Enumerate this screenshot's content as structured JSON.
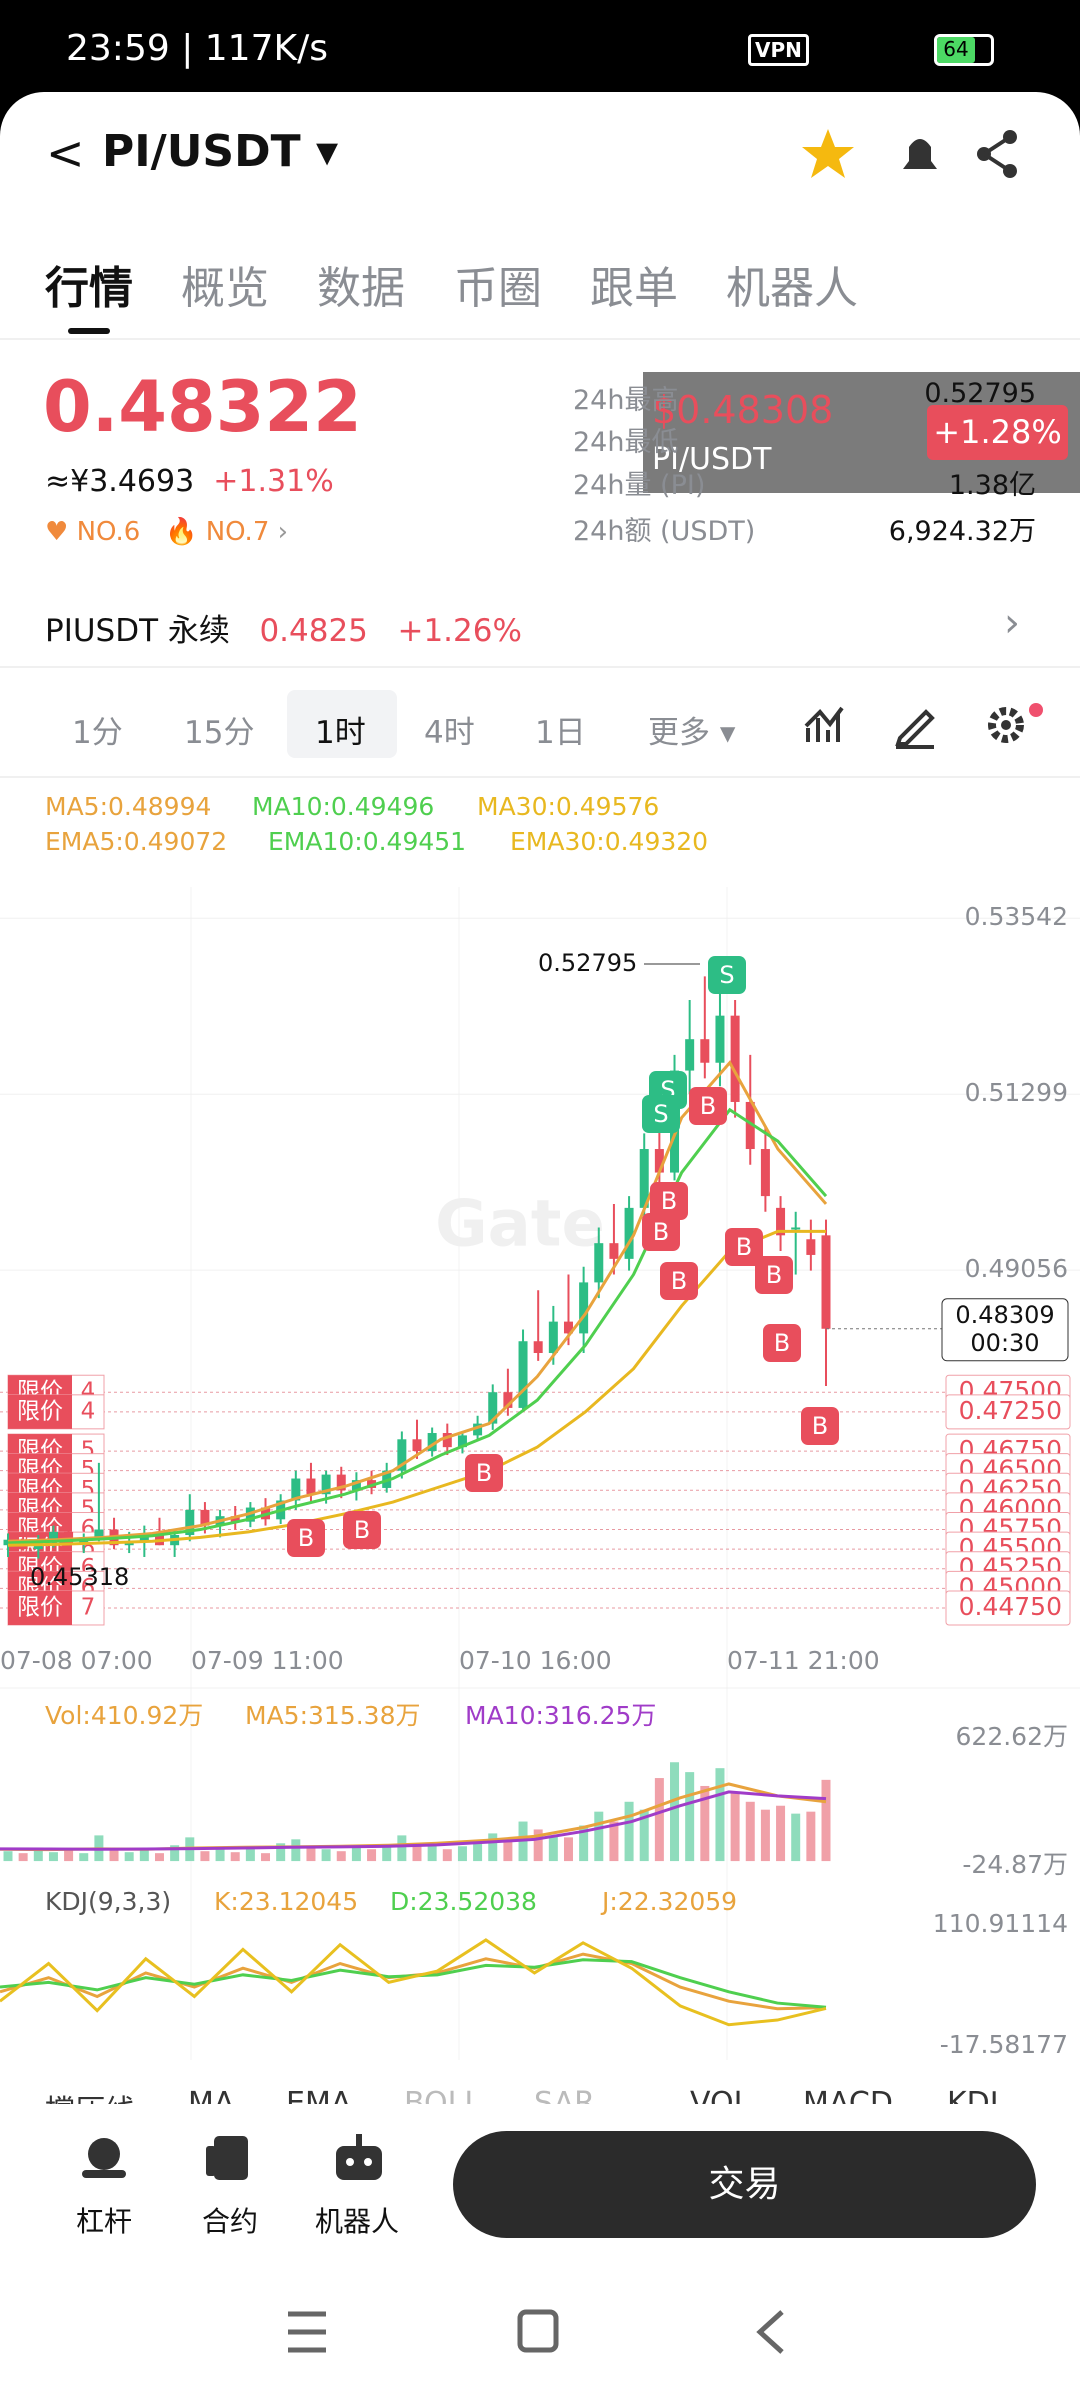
{
  "status_bar": {
    "time": "23:59",
    "speed": "117K/s",
    "vpn": "VPN",
    "battery": "64"
  },
  "header": {
    "pair": "PI/USDT"
  },
  "tabs": [
    "行情",
    "概览",
    "数据",
    "币圈",
    "跟单",
    "机器人"
  ],
  "price": {
    "last": "0.48322",
    "cny": "≈¥3.4693",
    "change": "+1.31%",
    "ranks": [
      "NO.6",
      "NO.7"
    ]
  },
  "stats": [
    {
      "label": "24h最高",
      "value": "0.52795"
    },
    {
      "label": "24h最低"
    },
    {
      "label": "24h量 (PI)",
      "value": "1.38亿"
    },
    {
      "label": "24h额 (USDT)",
      "value": "6,924.32万"
    }
  ],
  "popup": {
    "price": "$0.48308",
    "change": "+1.28%",
    "pair": "PI/USDT"
  },
  "perpetual": {
    "name": "PIUSDT 永续",
    "price": "0.4825",
    "change": "+1.26%"
  },
  "intervals": [
    "1分",
    "15分",
    "1时",
    "4时",
    "1日",
    "更多"
  ],
  "selected_interval": 2,
  "indicators": {
    "ma": [
      "MA5:0.48994",
      "MA10:0.49496",
      "MA30:0.49576"
    ],
    "ema": [
      "EMA5:0.49072",
      "EMA10:0.49451",
      "EMA30:0.49320"
    ]
  },
  "chart": {
    "watermark": "Gate",
    "ylim": [
      0.4438,
      0.5394
    ],
    "yticks": [
      0.53542,
      0.51299,
      0.49056
    ],
    "xlabels": [
      "07-08 07:00",
      "07-09 11:00",
      "07-10 16:00",
      "07-11 21:00"
    ],
    "high_label": "0.52795",
    "low_label": "0.45318",
    "limit_tag": "限价",
    "current": {
      "price": "0.48309",
      "countdown": "00:30"
    },
    "limit_orders": [
      {
        "price": {
          "value": 0.475,
          "label": "0.47500"
        },
        "count": 4
      },
      {
        "price": {
          "value": 0.4725,
          "label": "0.47250"
        },
        "count": 4
      },
      {
        "price": {
          "value": 0.4675,
          "label": "0.46750"
        },
        "count": 5
      },
      {
        "price": {
          "value": 0.465,
          "label": "0.46500"
        },
        "count": 5
      },
      {
        "price": {
          "value": 0.4625,
          "label": "0.46250"
        },
        "count": 5
      },
      {
        "price": {
          "value": 0.46,
          "label": "0.46000"
        },
        "count": 5
      },
      {
        "price": {
          "value": 0.4575,
          "label": "0.45750"
        },
        "count": 6
      },
      {
        "price": {
          "value": 0.455,
          "label": "0.45500"
        },
        "count": 6
      },
      {
        "price": {
          "value": 0.4525,
          "label": "0.45250"
        },
        "count": 6
      },
      {
        "price": {
          "value": 0.45,
          "label": "0.45000"
        },
        "count": 6
      },
      {
        "price": {
          "value": 0.4475,
          "label": "0.44750"
        },
        "count": 7
      }
    ],
    "candles": [
      [
        0.4555,
        0.457,
        0.454,
        0.4562
      ],
      [
        0.4562,
        0.4575,
        0.4548,
        0.455
      ],
      [
        0.455,
        0.4568,
        0.4538,
        0.456
      ],
      [
        0.456,
        0.458,
        0.4552,
        0.4572
      ],
      [
        0.4572,
        0.4585,
        0.4556,
        0.4558
      ],
      [
        0.4558,
        0.457,
        0.4545,
        0.4565
      ],
      [
        0.4565,
        0.466,
        0.456,
        0.4575
      ],
      [
        0.4575,
        0.459,
        0.455,
        0.4555
      ],
      [
        0.4555,
        0.4572,
        0.4545,
        0.456
      ],
      [
        0.456,
        0.458,
        0.454,
        0.457
      ],
      [
        0.457,
        0.459,
        0.4555,
        0.4555
      ],
      [
        0.4555,
        0.4575,
        0.454,
        0.4568
      ],
      [
        0.4568,
        0.462,
        0.456,
        0.46
      ],
      [
        0.46,
        0.461,
        0.457,
        0.458
      ],
      [
        0.458,
        0.46,
        0.4565,
        0.4592
      ],
      [
        0.4592,
        0.4605,
        0.4575,
        0.4585
      ],
      [
        0.4585,
        0.461,
        0.4578,
        0.4603
      ],
      [
        0.4603,
        0.4615,
        0.458,
        0.4588
      ],
      [
        0.4588,
        0.462,
        0.4582,
        0.4612
      ],
      [
        0.4612,
        0.465,
        0.46,
        0.464
      ],
      [
        0.464,
        0.466,
        0.461,
        0.462
      ],
      [
        0.462,
        0.465,
        0.4608,
        0.4645
      ],
      [
        0.4645,
        0.4655,
        0.4615,
        0.4625
      ],
      [
        0.4625,
        0.4648,
        0.4612,
        0.4638
      ],
      [
        0.4638,
        0.465,
        0.462,
        0.4628
      ],
      [
        0.4628,
        0.466,
        0.4622,
        0.465
      ],
      [
        0.465,
        0.47,
        0.464,
        0.469
      ],
      [
        0.469,
        0.4715,
        0.4665,
        0.4675
      ],
      [
        0.4675,
        0.4705,
        0.4668,
        0.4698
      ],
      [
        0.4698,
        0.471,
        0.467,
        0.468
      ],
      [
        0.468,
        0.47,
        0.4672,
        0.4695
      ],
      [
        0.4695,
        0.472,
        0.4688,
        0.471
      ],
      [
        0.471,
        0.476,
        0.4702,
        0.475
      ],
      [
        0.475,
        0.478,
        0.472,
        0.473
      ],
      [
        0.473,
        0.483,
        0.4725,
        0.4815
      ],
      [
        0.4815,
        0.488,
        0.479,
        0.48
      ],
      [
        0.48,
        0.486,
        0.4785,
        0.484
      ],
      [
        0.484,
        0.49,
        0.481,
        0.4825
      ],
      [
        0.4825,
        0.491,
        0.48,
        0.489
      ],
      [
        0.489,
        0.496,
        0.487,
        0.494
      ],
      [
        0.494,
        0.499,
        0.49,
        0.492
      ],
      [
        0.492,
        0.5,
        0.4905,
        0.4985
      ],
      [
        0.4985,
        0.508,
        0.497,
        0.506
      ],
      [
        0.506,
        0.51,
        0.501,
        0.503
      ],
      [
        0.503,
        0.518,
        0.502,
        0.516
      ],
      [
        0.516,
        0.525,
        0.513,
        0.52
      ],
      [
        0.52,
        0.528,
        0.515,
        0.517
      ],
      [
        0.517,
        0.526,
        0.514,
        0.523
      ],
      [
        0.523,
        0.525,
        0.51,
        0.512
      ],
      [
        0.512,
        0.518,
        0.504,
        0.506
      ],
      [
        0.506,
        0.509,
        0.498,
        0.5
      ],
      [
        0.4985,
        0.5,
        0.493,
        0.495
      ],
      [
        0.496,
        0.498,
        0.49,
        0.496
      ],
      [
        0.4945,
        0.497,
        0.4905,
        0.4925
      ],
      [
        0.495,
        0.497,
        0.4758,
        0.48309
      ]
    ],
    "ma_lines": [
      {
        "color": "#e8a33d",
        "values": [
          0.456,
          0.4562,
          0.4565,
          0.457,
          0.458,
          0.4595,
          0.4615,
          0.463,
          0.465,
          0.469,
          0.471,
          0.477,
          0.485,
          0.495,
          0.51,
          0.517,
          0.506,
          0.499
        ]
      },
      {
        "color": "#4fcf4f",
        "values": [
          0.4558,
          0.456,
          0.4563,
          0.4567,
          0.4575,
          0.4588,
          0.4605,
          0.462,
          0.464,
          0.467,
          0.4695,
          0.474,
          0.481,
          0.49,
          0.503,
          0.511,
          0.507,
          0.5
        ]
      },
      {
        "color": "#e8b820",
        "values": [
          0.4555,
          0.4556,
          0.4558,
          0.456,
          0.4565,
          0.4572,
          0.4582,
          0.4595,
          0.461,
          0.463,
          0.465,
          0.468,
          0.4725,
          0.478,
          0.486,
          0.493,
          0.4955,
          0.4955
        ]
      }
    ],
    "markers": [
      "B",
      "B",
      "B",
      "S",
      "S",
      "B",
      "B",
      "B",
      "B",
      "S",
      "B",
      "B",
      "B",
      "B"
    ]
  },
  "volume": {
    "labels": [
      "Vol:410.92万",
      "MA5:315.38万",
      "MA10:316.25万"
    ],
    "ylim": [
      -24.87,
      622.62
    ],
    "yticks": [
      {
        "value": 622.62,
        "label": "622.62万"
      },
      {
        "value": -24.87,
        "label": "-24.87万"
      }
    ],
    "values": [
      50,
      40,
      60,
      45,
      55,
      40,
      130,
      60,
      45,
      60,
      40,
      80,
      120,
      50,
      70,
      45,
      60,
      40,
      90,
      110,
      70,
      60,
      50,
      80,
      60,
      70,
      130,
      90,
      80,
      60,
      75,
      90,
      140,
      110,
      200,
      160,
      130,
      120,
      180,
      250,
      200,
      300,
      260,
      420,
      500,
      450,
      380,
      470,
      350,
      300,
      260,
      280,
      240,
      250,
      410.92
    ],
    "series": [
      {
        "color": "#e8a33d",
        "values": [
          60,
          58,
          62,
          60,
          66,
          70,
          72,
          75,
          80,
          90,
          105,
          125,
          170,
          230,
          320,
          390,
          330,
          300
        ]
      },
      {
        "color": "#a03cc8",
        "values": [
          62,
          61,
          60,
          61,
          63,
          66,
          70,
          72,
          75,
          82,
          95,
          110,
          150,
          200,
          280,
          350,
          330,
          316.25
        ]
      }
    ]
  },
  "kdj": {
    "labels": [
      "KDJ(9,3,3)",
      "K:23.12045",
      "D:23.52038",
      "J:22.32059"
    ],
    "ylim": [
      -17.58177,
      110.91114
    ],
    "yticks": [
      110.91114,
      -17.58177
    ],
    "series": [
      {
        "color": "#e8a33d",
        "values": [
          40,
          55,
          35,
          60,
          45,
          65,
          50,
          70,
          55,
          60,
          75,
          65,
          80,
          70,
          45,
          30,
          22,
          23.12
        ]
      },
      {
        "color": "#4fcf4f",
        "values": [
          45,
          50,
          42,
          55,
          48,
          58,
          52,
          63,
          56,
          58,
          68,
          66,
          74,
          72,
          55,
          40,
          28,
          23.52
        ]
      },
      {
        "color": "#e8c020",
        "values": [
          30,
          70,
          20,
          75,
          35,
          85,
          40,
          90,
          50,
          62,
          95,
          60,
          92,
          65,
          25,
          5,
          10,
          22.32
        ]
      }
    ]
  },
  "indicator_tabs": [
    "撑压线",
    "MA",
    "EMA",
    "BOLL",
    "SAR",
    "VOL",
    "MACD",
    "KDJ"
  ],
  "bottom": {
    "items": [
      "杠杆",
      "合约",
      "机器人"
    ],
    "trade": "交易"
  }
}
